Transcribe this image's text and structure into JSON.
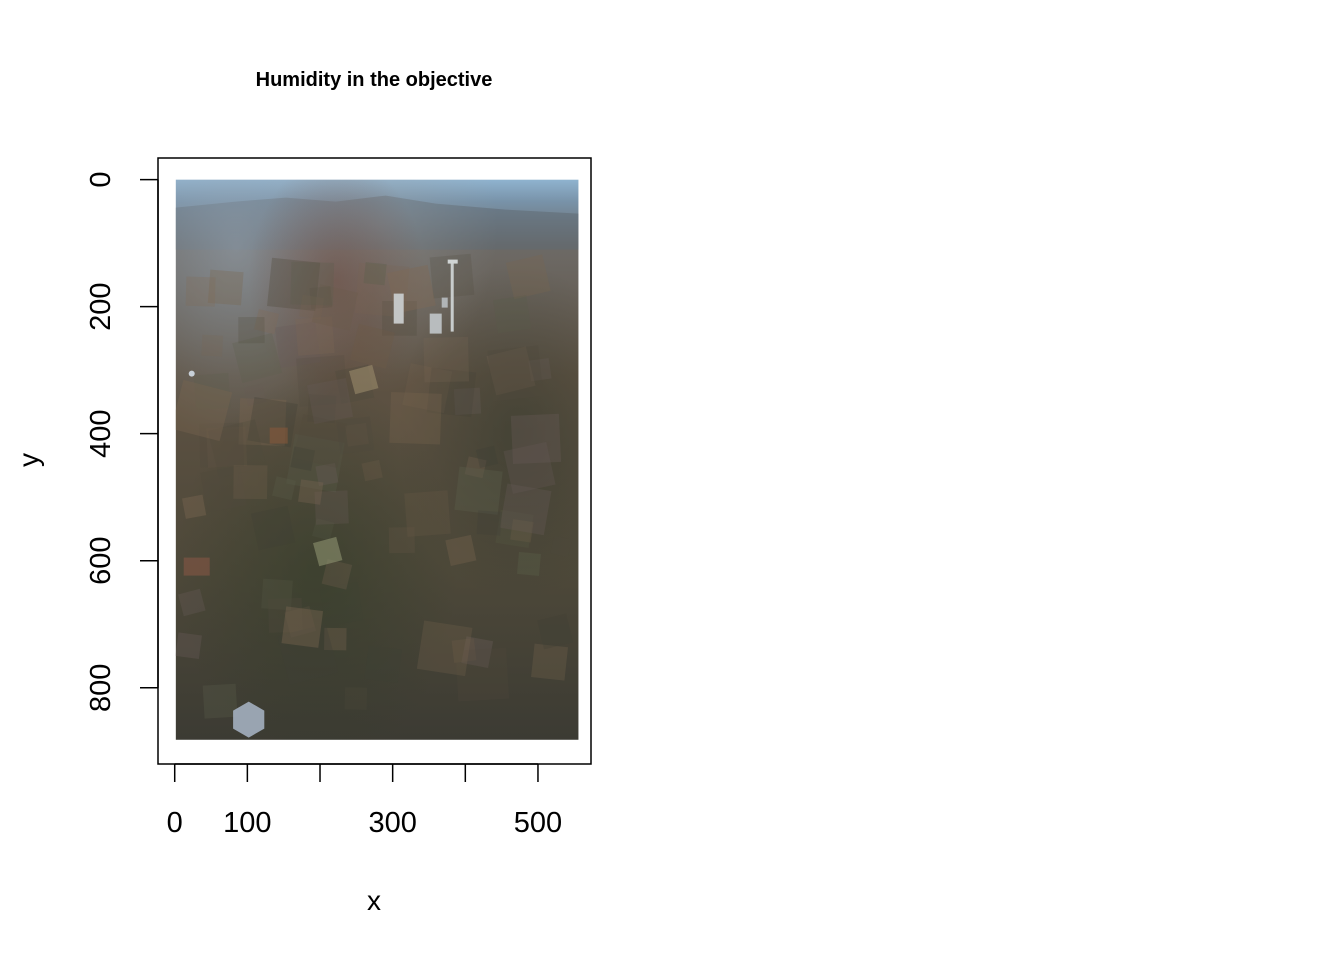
{
  "chart_data": {
    "type": "image",
    "title": "Humidity in the objective",
    "xlabel": "x",
    "ylabel": "y",
    "x_ticks": [
      0,
      100,
      200,
      300,
      400,
      500
    ],
    "x_tick_labels": [
      "0",
      "100",
      "",
      "300",
      "",
      "500"
    ],
    "y_ticks": [
      0,
      200,
      400,
      600,
      800
    ],
    "y_tick_labels": [
      "0",
      "200",
      "400",
      "600",
      "800"
    ],
    "xlim": [
      -23,
      573
    ],
    "ylim": [
      -34,
      920
    ],
    "y_axis_reversed": true,
    "image_extent": {
      "x": [
        0,
        553
      ],
      "y": [
        0,
        882
      ]
    },
    "grid": false,
    "image_description_colors": {
      "sky": "#7f9cb6",
      "haze": "#6b6a66",
      "ground": "#5b5040",
      "vegetation": "#3e4434"
    }
  }
}
